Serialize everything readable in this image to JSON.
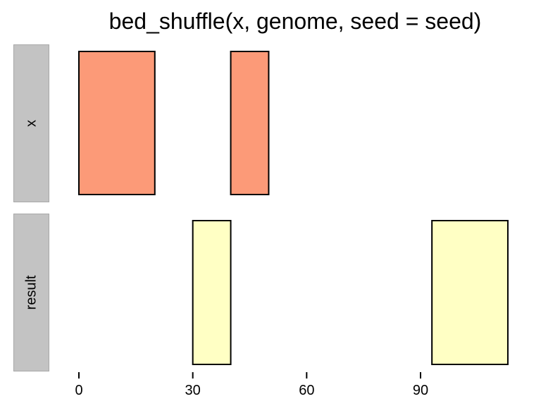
{
  "chart_data": {
    "type": "bar",
    "title": "bed_shuffle(x, genome, seed = seed)",
    "xlabel": "",
    "ylabel": "",
    "xlim": [
      0,
      112
    ],
    "x_ticks": [
      0,
      30,
      60,
      90
    ],
    "x_tick_labels": [
      "0",
      "30",
      "60",
      "90"
    ],
    "grid": false,
    "panels": [
      {
        "label": "x",
        "fill": "#fc9a78",
        "intervals": [
          {
            "start": 0,
            "end": 20
          },
          {
            "start": 40,
            "end": 50
          }
        ]
      },
      {
        "label": "result",
        "fill": "#ffffc4",
        "intervals": [
          {
            "start": 30,
            "end": 40
          },
          {
            "start": 93,
            "end": 113
          }
        ]
      }
    ]
  }
}
